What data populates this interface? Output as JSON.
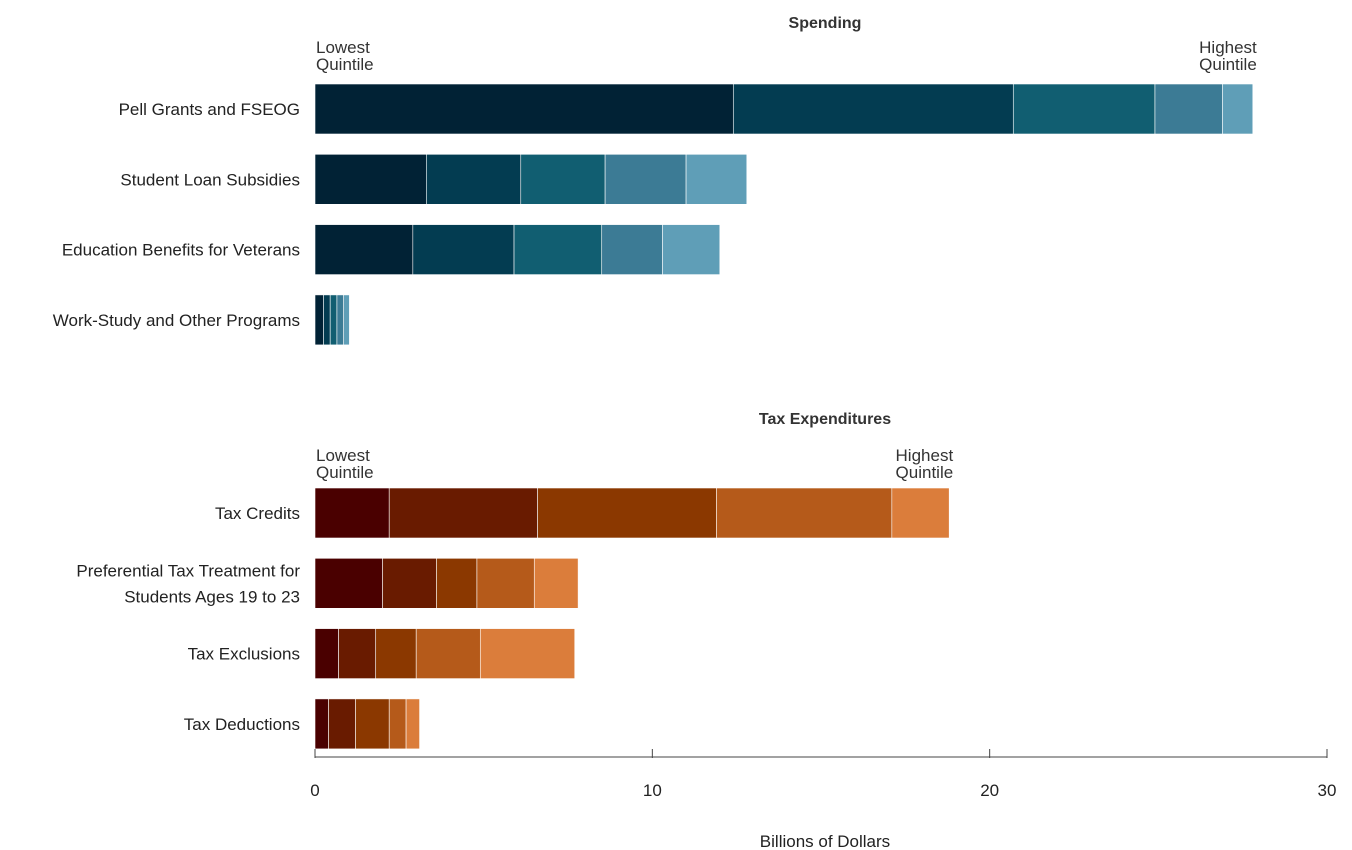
{
  "chart_data": {
    "type": "bar",
    "orientation": "horizontal",
    "stacked": true,
    "xlabel": "Billions of Dollars",
    "xlim": [
      0,
      30
    ],
    "xticks": [
      0,
      10,
      20,
      30
    ],
    "xtick_labels": [
      "0",
      "10",
      "20",
      "30"
    ],
    "panels": [
      {
        "title": "Spending",
        "lowest_label": [
          "Lowest",
          "Quintile"
        ],
        "highest_label": [
          "Highest",
          "Quintile"
        ],
        "colors": [
          "#012235",
          "#033c51",
          "#115e71",
          "#3c7b95",
          "#5f9eb7"
        ],
        "categories": [
          [
            "Pell Grants and FSEOG"
          ],
          [
            "Student Loan Subsidies"
          ],
          [
            "Education Benefits for Veterans"
          ],
          [
            "Work-Study and Other Programs"
          ]
        ],
        "quintile_values": [
          [
            12.4,
            8.3,
            4.2,
            2.0,
            0.9
          ],
          [
            3.3,
            2.8,
            2.5,
            2.4,
            1.8
          ],
          [
            2.9,
            3.0,
            2.6,
            1.8,
            1.7
          ],
          [
            0.25,
            0.2,
            0.2,
            0.2,
            0.17
          ]
        ]
      },
      {
        "title": "Tax Expenditures",
        "lowest_label": [
          "Lowest",
          "Quintile"
        ],
        "highest_label": [
          "Highest",
          "Quintile"
        ],
        "colors": [
          "#4a0000",
          "#691b00",
          "#8b3800",
          "#b55a1a",
          "#db7d3b"
        ],
        "categories": [
          [
            "Tax Credits"
          ],
          [
            "Preferential Tax Treatment for",
            "Students Ages 19 to 23"
          ],
          [
            "Tax Exclusions"
          ],
          [
            "Tax Deductions"
          ]
        ],
        "quintile_values": [
          [
            2.2,
            4.4,
            5.3,
            5.2,
            1.7
          ],
          [
            2.0,
            1.6,
            1.2,
            1.7,
            1.3
          ],
          [
            0.7,
            1.1,
            1.2,
            1.9,
            2.8
          ],
          [
            0.4,
            0.8,
            1.0,
            0.5,
            0.4
          ]
        ]
      }
    ]
  }
}
